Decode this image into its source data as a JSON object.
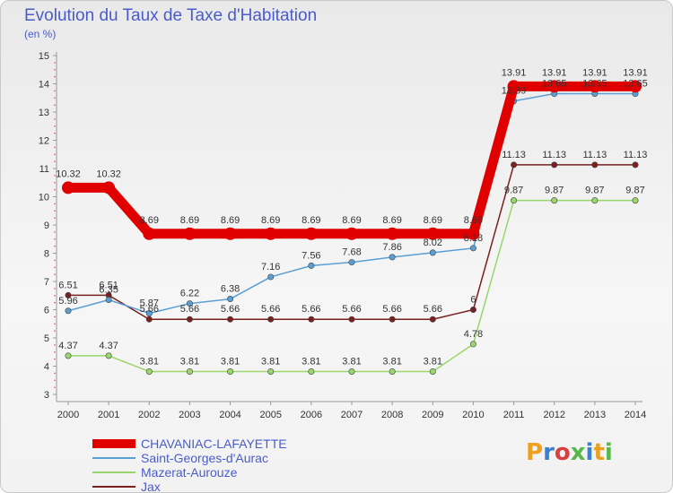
{
  "title": "Evolution du Taux de Taxe d'Habitation",
  "subtitle": "(en %)",
  "logo_text": "Proxiti",
  "chart_data": {
    "type": "line",
    "x": [
      "2000",
      "2001",
      "2002",
      "2003",
      "2004",
      "2005",
      "2006",
      "2007",
      "2008",
      "2009",
      "2010",
      "2011",
      "2012",
      "2013",
      "2014"
    ],
    "ylim": [
      3,
      15
    ],
    "yticks": [
      3,
      4,
      5,
      6,
      7,
      8,
      9,
      10,
      11,
      12,
      13,
      14,
      15
    ],
    "grid": false,
    "legend_position": "bottom-left",
    "series": [
      {
        "name": "CHAVANIAC-LAFAYETTE",
        "color": "#e00000",
        "values": [
          10.32,
          10.32,
          8.69,
          8.69,
          8.69,
          8.69,
          8.69,
          8.69,
          8.69,
          8.69,
          8.69,
          13.91,
          13.91,
          13.91,
          13.91
        ],
        "labels": [
          "10.32",
          "10.32",
          "8.69",
          "8.69",
          "8.69",
          "8.69",
          "8.69",
          "8.69",
          "8.69",
          "8.69",
          "8.69",
          "13.91",
          "13.91",
          "13.91",
          "13.91"
        ]
      },
      {
        "name": "Saint-Georges-d'Aurac",
        "color": "#5a9fd4",
        "values": [
          5.96,
          6.35,
          5.87,
          6.22,
          6.38,
          7.16,
          7.56,
          7.68,
          7.86,
          8.02,
          8.18,
          13.39,
          13.65,
          13.65,
          13.65
        ],
        "labels": [
          "5.96",
          "6.35",
          "5.87",
          "6.22",
          "6.38",
          "7.16",
          "7.56",
          "7.68",
          "7.86",
          "8.02",
          "8.18",
          "13.39",
          "13.65",
          "13.65",
          "13.65"
        ]
      },
      {
        "name": "Mazerat-Aurouze",
        "color": "#99d66b",
        "values": [
          4.37,
          4.37,
          3.81,
          3.81,
          3.81,
          3.81,
          3.81,
          3.81,
          3.81,
          3.81,
          4.78,
          9.87,
          9.87,
          9.87,
          9.87
        ],
        "labels": [
          "4.37",
          "4.37",
          "3.81",
          "3.81",
          "3.81",
          "3.81",
          "3.81",
          "3.81",
          "3.81",
          "3.81",
          "4.78",
          "9.87",
          "9.87",
          "9.87",
          "9.87"
        ]
      },
      {
        "name": "Jax",
        "color": "#7a2020",
        "values": [
          6.51,
          6.51,
          5.66,
          5.66,
          5.66,
          5.66,
          5.66,
          5.66,
          5.66,
          5.66,
          6,
          11.13,
          11.13,
          11.13,
          11.13
        ],
        "labels": [
          "6.51",
          "6.51",
          "5.66",
          "5.66",
          "5.66",
          "5.66",
          "5.66",
          "5.66",
          "5.66",
          "5.66",
          "6",
          "11.13",
          "11.13",
          "11.13",
          "11.13"
        ]
      }
    ]
  }
}
